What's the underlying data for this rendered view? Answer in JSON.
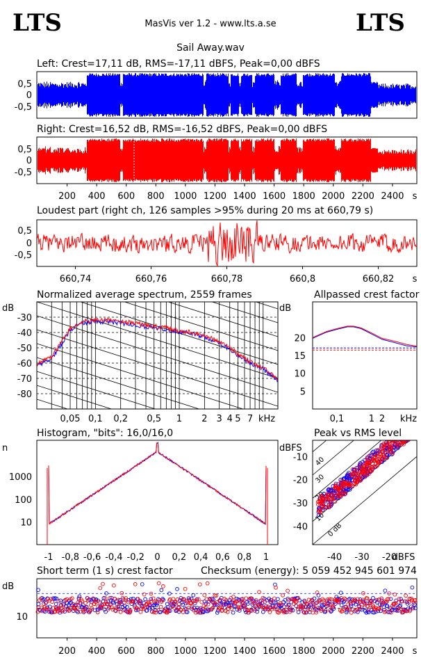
{
  "header": {
    "logo_left": "LTS",
    "logo_right": "LTS",
    "app_title": "MasVis ver 1.2 - www.lts.a.se",
    "file_name": "Sail Away.wav"
  },
  "colors": {
    "left": "#0000ff",
    "right": "#ff0000",
    "axis": "#000000"
  },
  "chart_data": [
    {
      "type": "area",
      "title": "Left: Crest=17,11 dB, RMS=-17,11 dBFS, Peak=0,00 dBFS",
      "ylim": [
        -1,
        1
      ],
      "yticks": [
        "0,5",
        "0",
        "-0,5"
      ],
      "xlim": [
        0,
        2560
      ],
      "series": [
        {
          "name": "Left",
          "color": "#0000ff"
        }
      ]
    },
    {
      "type": "area",
      "title": "Right: Crest=16,52 dB, RMS=-16,52 dBFS, Peak=0,00 dBFS",
      "ylim": [
        -1,
        1
      ],
      "yticks": [
        "0,5",
        "0",
        "-0,5"
      ],
      "xlim": [
        0,
        2560
      ],
      "xticks": [
        "200",
        "400",
        "600",
        "800",
        "1000",
        "1200",
        "1400",
        "1600",
        "1800",
        "2000",
        "2200",
        "2400"
      ],
      "xunit": "s",
      "series": [
        {
          "name": "Right",
          "color": "#ff0000"
        }
      ]
    },
    {
      "type": "line",
      "title": "Loudest part (right ch, 126 samples >95% during 20 ms at 660,79 s)",
      "ylim": [
        -1,
        1
      ],
      "yticks": [
        "0,5",
        "0",
        "-0,5"
      ],
      "xlim": [
        660.73,
        660.83
      ],
      "xticks": [
        "660,74",
        "660,76",
        "660,78",
        "660,8",
        "660,82"
      ],
      "xunit": "s"
    },
    {
      "type": "line",
      "title": "Normalized average spectrum, 2559 frames",
      "ylabel": "dB",
      "yticks": [
        "-30",
        "-40",
        "-50",
        "-60",
        "-70",
        "-80"
      ],
      "xticks": [
        "0,05",
        "0,1",
        "0,2",
        "0,5",
        "1",
        "2",
        "3",
        "4",
        "5",
        "7"
      ],
      "xunit": "kHz",
      "x": [
        0.02,
        0.03,
        0.04,
        0.05,
        0.07,
        0.1,
        0.15,
        0.2,
        0.3,
        0.5,
        0.7,
        1,
        1.5,
        2,
        3,
        4,
        5,
        7,
        10,
        15
      ],
      "series": [
        {
          "name": "Left",
          "values": [
            -62,
            -57,
            -47,
            -38,
            -34,
            -33,
            -33,
            -34,
            -35,
            -37,
            -38,
            -40,
            -41,
            -43,
            -47,
            -51,
            -55,
            -60,
            -64,
            -71
          ]
        },
        {
          "name": "Right",
          "values": [
            -61,
            -56,
            -46,
            -37,
            -33,
            -32,
            -32,
            -33,
            -34,
            -36,
            -37,
            -39,
            -40,
            -42,
            -46,
            -50,
            -54,
            -59,
            -63,
            -70
          ]
        }
      ]
    },
    {
      "type": "line",
      "title": "Allpassed crest factor",
      "ylabel": "dB",
      "yticks": [
        "20",
        "15",
        "10",
        "5"
      ],
      "xticks": [
        "0,1",
        "1",
        "2"
      ],
      "xunit": "kHz",
      "x": [
        0.02,
        0.05,
        0.1,
        0.2,
        0.3,
        0.5,
        1,
        2,
        5,
        10,
        20
      ],
      "series": [
        {
          "name": "Left",
          "values": [
            19.8,
            21.5,
            22.3,
            23.0,
            23.0,
            22.5,
            21.0,
            19.5,
            18.5,
            17.7,
            17.4
          ]
        },
        {
          "name": "Right",
          "values": [
            20.0,
            21.7,
            22.5,
            23.2,
            23.2,
            22.7,
            21.3,
            19.8,
            18.9,
            18.1,
            17.6
          ]
        }
      ],
      "reference": [
        17.1,
        16.5
      ]
    },
    {
      "type": "line",
      "title": "Histogram, \"bits\": 16,0/16,0",
      "ylabel": "n",
      "yticks": [
        "1000",
        "100",
        "10"
      ],
      "xticks": [
        "-1",
        "-0,8",
        "-0,6",
        "-0,4",
        "-0,2",
        "0",
        "0,2",
        "0,4",
        "0,6",
        "0,8",
        "1"
      ]
    },
    {
      "type": "scatter",
      "title": "Peak vs RMS level",
      "ylabel": "dBFS",
      "xunit": "dBFS",
      "yticks": [
        "-10",
        "-20",
        "-30",
        "-40"
      ],
      "xticks": [
        "-40",
        "-30",
        "-20"
      ],
      "diagonal_labels": [
        "40",
        "30",
        "20",
        "10",
        "0 dB"
      ]
    },
    {
      "type": "scatter",
      "title": "Short term (1 s) crest factor",
      "ylabel": "dB",
      "yticks": [
        "10"
      ],
      "xticks": [
        "200",
        "400",
        "600",
        "800",
        "1000",
        "1200",
        "1400",
        "1600",
        "1800",
        "2000",
        "2200",
        "2400"
      ],
      "xunit": "s",
      "checksum": "Checksum (energy):  5 059 452 945 601 974"
    }
  ]
}
